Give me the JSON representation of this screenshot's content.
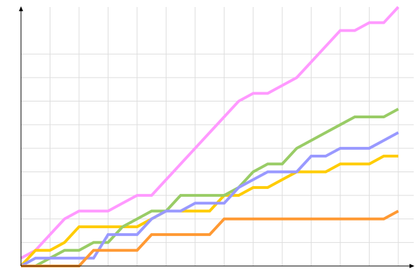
{
  "chart_data": {
    "type": "line",
    "title": "",
    "xlabel": "",
    "ylabel": "",
    "xlim": [
      0,
      26
    ],
    "ylim": [
      0,
      33
    ],
    "x_grid_step": 2,
    "y_grid_step": 3,
    "y_grid_max": 27,
    "grid": true,
    "legend": "none",
    "x": [
      0,
      1,
      2,
      3,
      4,
      5,
      6,
      7,
      8,
      9,
      10,
      11,
      12,
      13,
      14,
      15,
      16,
      17,
      18,
      19,
      20,
      21,
      22,
      23,
      24,
      25,
      26
    ],
    "series": [
      {
        "color": "#ff99ff",
        "values": [
          1,
          2,
          4,
          6,
          7,
          7,
          7,
          8,
          9,
          9,
          11,
          13,
          15,
          17,
          19,
          21,
          22,
          22,
          23,
          24,
          26,
          28,
          30,
          30,
          31,
          31,
          33
        ]
      },
      {
        "color": "#ffcc00",
        "values": [
          0,
          2,
          2,
          3,
          5,
          5,
          5,
          5,
          5,
          6,
          7,
          7,
          7,
          7,
          9,
          9,
          10,
          10,
          11,
          12,
          12,
          12,
          13,
          13,
          13,
          14,
          14
        ]
      },
      {
        "color": "#99cc66",
        "values": [
          0,
          0,
          1,
          2,
          2,
          3,
          3,
          5,
          6,
          7,
          7,
          9,
          9,
          9,
          9,
          10,
          12,
          13,
          13,
          15,
          16,
          17,
          18,
          19,
          19,
          19,
          20
        ]
      },
      {
        "color": "#9999ff",
        "values": [
          0,
          1,
          1,
          1,
          1,
          1,
          4,
          4,
          4,
          6,
          7,
          7,
          8,
          8,
          8,
          10,
          11,
          12,
          12,
          12,
          14,
          14,
          15,
          15,
          15,
          16,
          17
        ]
      },
      {
        "color": "#ff9933",
        "values": [
          0,
          0,
          0,
          0,
          0,
          2,
          2,
          2,
          2,
          4,
          4,
          4,
          4,
          4,
          6,
          6,
          6,
          6,
          6,
          6,
          6,
          6,
          6,
          6,
          6,
          6,
          7
        ]
      }
    ]
  }
}
